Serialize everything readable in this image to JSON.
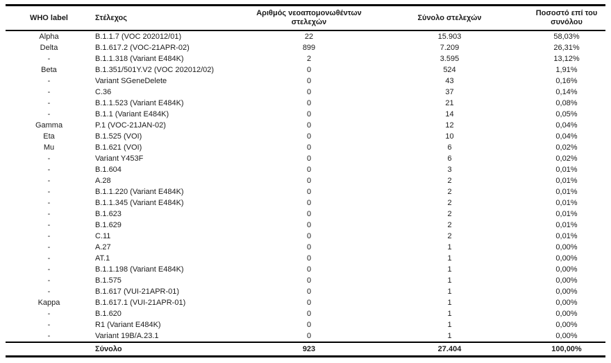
{
  "table": {
    "columns": [
      {
        "label": "WHO label"
      },
      {
        "label": "Στέλεχος"
      },
      {
        "label": "Αριθμός νεοαπομονωθέντων στελεχών"
      },
      {
        "label": "Σύνολο στελεχών"
      },
      {
        "label": "Ποσοστό επί του συνόλου"
      }
    ],
    "rows": [
      [
        "Alpha",
        "B.1.1.7 (VOC 202012/01)",
        "22",
        "15.903",
        "58,03%"
      ],
      [
        "Delta",
        "B.1.617.2 (VOC-21APR-02)",
        "899",
        "7.209",
        "26,31%"
      ],
      [
        "-",
        "B.1.1.318 (Variant E484K)",
        "2",
        "3.595",
        "13,12%"
      ],
      [
        "Beta",
        "B.1.351/501Y.V2 (VOC 202012/02)",
        "0",
        "524",
        "1,91%"
      ],
      [
        "-",
        "Variant SGeneDelete",
        "0",
        "43",
        "0,16%"
      ],
      [
        "-",
        "C.36",
        "0",
        "37",
        "0,14%"
      ],
      [
        "-",
        "B.1.1.523 (Variant E484K)",
        "0",
        "21",
        "0,08%"
      ],
      [
        "-",
        "B.1.1 (Variant E484K)",
        "0",
        "14",
        "0,05%"
      ],
      [
        "Gamma",
        "P.1 (VOC-21JAN-02)",
        "0",
        "12",
        "0,04%"
      ],
      [
        "Eta",
        "B.1.525 (VOI)",
        "0",
        "10",
        "0,04%"
      ],
      [
        "Mu",
        "B.1.621 (VOI)",
        "0",
        "6",
        "0,02%"
      ],
      [
        "-",
        "Variant Y453F",
        "0",
        "6",
        "0,02%"
      ],
      [
        "-",
        "B.1.604",
        "0",
        "3",
        "0,01%"
      ],
      [
        "-",
        "A.28",
        "0",
        "2",
        "0,01%"
      ],
      [
        "-",
        "B.1.1.220 (Variant E484K)",
        "0",
        "2",
        "0,01%"
      ],
      [
        "-",
        "B.1.1.345 (Variant E484K)",
        "0",
        "2",
        "0,01%"
      ],
      [
        "-",
        "B.1.623",
        "0",
        "2",
        "0,01%"
      ],
      [
        "-",
        "B.1.629",
        "0",
        "2",
        "0,01%"
      ],
      [
        "-",
        "C.11",
        "0",
        "2",
        "0,01%"
      ],
      [
        "-",
        "A.27",
        "0",
        "1",
        "0,00%"
      ],
      [
        "-",
        "AT.1",
        "0",
        "1",
        "0,00%"
      ],
      [
        "-",
        "B.1.1.198 (Variant E484K)",
        "0",
        "1",
        "0,00%"
      ],
      [
        "-",
        "B.1.575",
        "0",
        "1",
        "0,00%"
      ],
      [
        "-",
        "B.1.617 (VUI-21APR-01)",
        "0",
        "1",
        "0,00%"
      ],
      [
        "Kappa",
        "B.1.617.1 (VUI-21APR-01)",
        "0",
        "1",
        "0,00%"
      ],
      [
        "-",
        "B.1.620",
        "0",
        "1",
        "0,00%"
      ],
      [
        "-",
        "R1 (Variant E484K)",
        "0",
        "1",
        "0,00%"
      ],
      [
        "-",
        "Variant 19B/A.23.1",
        "0",
        "1",
        "0,00%"
      ]
    ],
    "total_row": {
      "who": "",
      "label": "Σύνολο",
      "new_count": "923",
      "total": "27.404",
      "percent": "100,00%"
    }
  },
  "colors": {
    "text": "#1a1a1a",
    "border": "#000000",
    "background": "#ffffff"
  }
}
